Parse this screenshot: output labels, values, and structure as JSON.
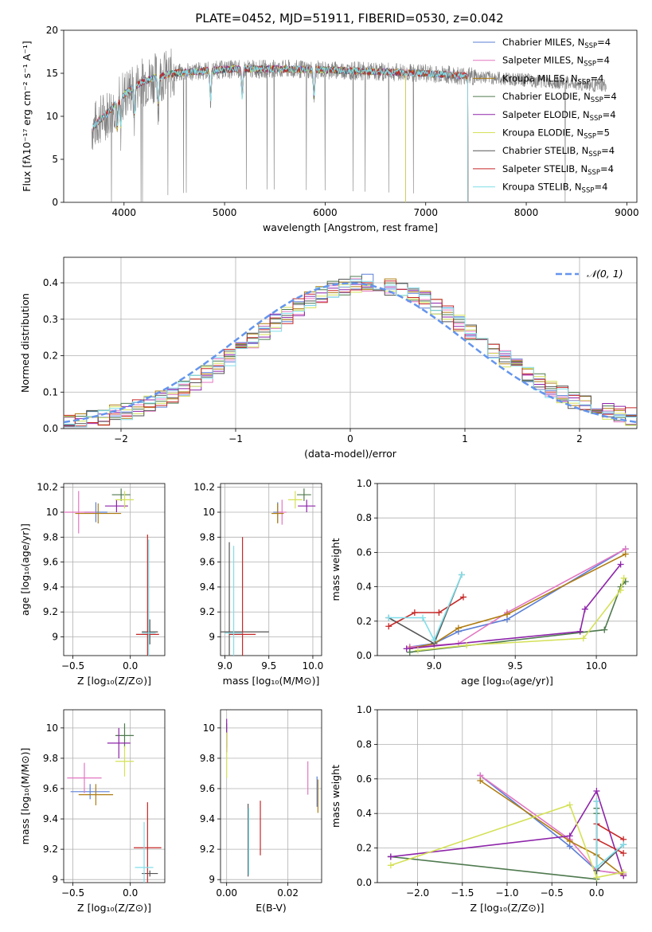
{
  "colors": {
    "Chabrier MILES": "#5b7fd6",
    "Salpeter MILES": "#e377c2",
    "Kroupa MILES": "#b07d12",
    "Chabrier ELODIE": "#4f7a4f",
    "Salpeter ELODIE": "#8e24aa",
    "Kroupa ELODIE": "#d4e157",
    "Chabrier STELIB": "#555555",
    "Salpeter STELIB": "#c62828",
    "Kroupa STELIB": "#80deea",
    "data": "#808080",
    "gaussian": "#6495ed",
    "grid": "#b0b0b0"
  },
  "chart_data": [
    {
      "type": "line",
      "title": "PLATE=0452, MJD=51911, FIBERID=0530, z=0.042",
      "xlabel": "wavelength [Angstrom, rest frame]",
      "ylabel": "Flux [fλ10⁻¹⁷ erg cm⁻² s⁻¹ A⁻¹]",
      "xlim": [
        3400,
        9100
      ],
      "ylim": [
        0,
        20
      ],
      "xticks": [
        4000,
        5000,
        6000,
        7000,
        8000,
        9000
      ],
      "yticks": [
        0,
        5,
        10,
        15,
        20
      ],
      "grid": false,
      "legend": "right",
      "legend_entries": [
        {
          "label": "Chabrier MILES, N",
          "sub": "SSP",
          "tail": "=4"
        },
        {
          "label": "Salpeter MILES, N",
          "sub": "SSP",
          "tail": "=4"
        },
        {
          "label": "Kroupa MILES, N",
          "sub": "SSP",
          "tail": "=4"
        },
        {
          "label": "Chabrier ELODIE, N",
          "sub": "SSP",
          "tail": "=4"
        },
        {
          "label": "Salpeter ELODIE, N",
          "sub": "SSP",
          "tail": "=4"
        },
        {
          "label": "Kroupa ELODIE, N",
          "sub": "SSP",
          "tail": "=5"
        },
        {
          "label": "Chabrier STELIB, N",
          "sub": "SSP",
          "tail": "=4"
        },
        {
          "label": "Salpeter STELIB, N",
          "sub": "SSP",
          "tail": "=4"
        },
        {
          "label": "Kroupa STELIB, N",
          "sub": "SSP",
          "tail": "=4"
        }
      ],
      "continuum": {
        "x": [
          3680,
          3750,
          3850,
          3950,
          4050,
          4150,
          4300,
          4500,
          4800,
          5100,
          5500,
          6000,
          6500,
          7000,
          7400,
          8000,
          8500,
          8800
        ],
        "y": [
          8.5,
          9.5,
          10.5,
          12.0,
          13.0,
          13.8,
          14.5,
          15.0,
          15.3,
          15.5,
          15.5,
          15.4,
          15.2,
          15.0,
          14.7,
          14.2,
          13.8,
          13.5
        ]
      },
      "data_x_range": [
        3680,
        8800
      ],
      "model_x_ranges": {
        "MILES": [
          3680,
          7420
        ],
        "ELODIE": [
          3890,
          6800
        ],
        "STELIB": [
          3680,
          7420
        ]
      }
    },
    {
      "type": "bar",
      "xlabel": "(data-model)/error",
      "ylabel": "Normed distribution",
      "xlim": [
        -2.5,
        2.5
      ],
      "ylim": [
        0,
        0.47
      ],
      "xticks": [
        -2,
        -1,
        0,
        1,
        2
      ],
      "xtick_labels": [
        "−2",
        "−1",
        "0",
        "1",
        "2"
      ],
      "yticks": [
        0.0,
        0.1,
        0.2,
        0.3,
        0.4
      ],
      "grid": true,
      "legend": "top-right",
      "gaussian_label": "𝒩(0, 1)",
      "bin_width": 0.1,
      "bin_start": -2.5,
      "base_values": [
        0.018,
        0.022,
        0.027,
        0.033,
        0.04,
        0.048,
        0.056,
        0.066,
        0.079,
        0.094,
        0.11,
        0.129,
        0.149,
        0.171,
        0.194,
        0.218,
        0.242,
        0.266,
        0.29,
        0.312,
        0.333,
        0.352,
        0.368,
        0.381,
        0.391,
        0.397,
        0.4,
        0.397,
        0.391,
        0.381,
        0.368,
        0.352,
        0.333,
        0.312,
        0.29,
        0.266,
        0.242,
        0.218,
        0.194,
        0.171,
        0.149,
        0.129,
        0.11,
        0.094,
        0.079,
        0.066,
        0.056,
        0.048,
        0.04,
        0.033
      ]
    },
    {
      "type": "scatter",
      "xlabel": "Z [log₁₀(Z/Z⊙)]",
      "ylabel": "age  [log₁₀(age/yr)]",
      "xlim": [
        -0.58,
        0.3
      ],
      "ylim": [
        8.85,
        10.23
      ],
      "xticks": [
        -0.5,
        0.0
      ],
      "xtick_labels": [
        "−0.5",
        "0.0"
      ],
      "yticks": [
        9.0,
        9.2,
        9.4,
        9.6,
        9.8,
        10.0,
        10.2
      ],
      "grid": true,
      "points": [
        {
          "s": "Chabrier MILES",
          "x": -0.3,
          "y": 10.0,
          "ex": 0.1,
          "ey": 0.08
        },
        {
          "s": "Salpeter MILES",
          "x": -0.45,
          "y": 10.0,
          "ex": 0.15,
          "ey": 0.17
        },
        {
          "s": "Kroupa MILES",
          "x": -0.28,
          "y": 9.99,
          "ex": 0.2,
          "ey": 0.08
        },
        {
          "s": "Chabrier ELODIE",
          "x": -0.08,
          "y": 10.14,
          "ex": 0.08,
          "ey": 0.05
        },
        {
          "s": "Salpeter ELODIE",
          "x": -0.12,
          "y": 10.05,
          "ex": 0.1,
          "ey": 0.05
        },
        {
          "s": "Kroupa ELODIE",
          "x": -0.05,
          "y": 10.1,
          "ex": 0.08,
          "ey": 0.07
        },
        {
          "s": "Chabrier STELIB",
          "x": 0.17,
          "y": 9.04,
          "ex": 0.07,
          "ey": 0.1
        },
        {
          "s": "Salpeter STELIB",
          "x": 0.15,
          "y": 9.02,
          "ex": 0.1,
          "ey": 0.8
        },
        {
          "s": "Kroupa STELIB",
          "x": 0.16,
          "y": 9.03,
          "ex": 0.06,
          "ey": 0.75
        }
      ]
    },
    {
      "type": "scatter",
      "xlabel": "mass [log₁₀(M/M⊙)]",
      "ylabel": "",
      "xlim": [
        8.95,
        10.1
      ],
      "ylim": [
        8.85,
        10.23
      ],
      "xticks": [
        9.0,
        9.5,
        10.0
      ],
      "xtick_labels": [
        "9.0",
        "9.5",
        "10.0"
      ],
      "yticks": [
        9.0,
        9.2,
        9.4,
        9.6,
        9.8,
        10.0,
        10.2
      ],
      "grid": true,
      "points": [
        {
          "s": "Chabrier MILES",
          "x": 9.6,
          "y": 10.0,
          "ex": 0.05,
          "ey": 0.08
        },
        {
          "s": "Salpeter MILES",
          "x": 9.65,
          "y": 10.0,
          "ex": 0.05,
          "ey": 0.1
        },
        {
          "s": "Kroupa MILES",
          "x": 9.6,
          "y": 9.99,
          "ex": 0.07,
          "ey": 0.08
        },
        {
          "s": "Chabrier ELODIE",
          "x": 9.9,
          "y": 10.14,
          "ex": 0.08,
          "ey": 0.05
        },
        {
          "s": "Salpeter ELODIE",
          "x": 9.93,
          "y": 10.05,
          "ex": 0.1,
          "ey": 0.05
        },
        {
          "s": "Kroupa ELODIE",
          "x": 9.8,
          "y": 10.1,
          "ex": 0.08,
          "ey": 0.07
        },
        {
          "s": "Chabrier STELIB",
          "x": 9.05,
          "y": 9.04,
          "ex": 0.45,
          "ey": 0.72
        },
        {
          "s": "Salpeter STELIB",
          "x": 9.2,
          "y": 9.02,
          "ex": 0.15,
          "ey": 0.78
        },
        {
          "s": "Kroupa STELIB",
          "x": 9.1,
          "y": 9.03,
          "ex": 0.1,
          "ey": 0.7
        }
      ]
    },
    {
      "type": "line",
      "xlabel": "age  [log₁₀(age/yr)]",
      "ylabel": "mass weight",
      "xlim": [
        8.65,
        10.25
      ],
      "ylim": [
        0,
        1.0
      ],
      "xticks": [
        9.0,
        9.5,
        10.0
      ],
      "xtick_labels": [
        "9.0",
        "9.5",
        "10.0"
      ],
      "yticks": [
        0.0,
        0.2,
        0.4,
        0.6,
        0.8,
        1.0
      ],
      "grid": true,
      "series": [
        {
          "s": "Chabrier MILES",
          "x": [
            8.85,
            9.0,
            9.15,
            9.45,
            10.18
          ],
          "y": [
            0.05,
            0.07,
            0.14,
            0.21,
            0.62
          ]
        },
        {
          "s": "Salpeter MILES",
          "x": [
            8.85,
            9.0,
            9.15,
            9.45,
            10.18
          ],
          "y": [
            0.05,
            0.06,
            0.07,
            0.25,
            0.62
          ]
        },
        {
          "s": "Kroupa MILES",
          "x": [
            8.85,
            9.0,
            9.15,
            9.45,
            10.18
          ],
          "y": [
            0.04,
            0.07,
            0.16,
            0.24,
            0.59
          ]
        },
        {
          "s": "Chabrier ELODIE",
          "x": [
            8.85,
            10.05,
            10.15,
            10.18
          ],
          "y": [
            0.02,
            0.15,
            0.4,
            0.43
          ]
        },
        {
          "s": "Salpeter ELODIE",
          "x": [
            8.83,
            9.9,
            9.93,
            10.15
          ],
          "y": [
            0.04,
            0.14,
            0.27,
            0.53
          ]
        },
        {
          "s": "Kroupa ELODIE",
          "x": [
            8.9,
            9.2,
            9.92,
            10.15,
            10.17
          ],
          "y": [
            0.03,
            0.06,
            0.1,
            0.38,
            0.45
          ]
        },
        {
          "s": "Chabrier STELIB",
          "x": [
            8.72,
            9.0,
            9.17
          ],
          "y": [
            0.22,
            0.07,
            0.47
          ]
        },
        {
          "s": "Salpeter STELIB",
          "x": [
            8.72,
            8.88,
            9.03,
            9.18
          ],
          "y": [
            0.17,
            0.25,
            0.25,
            0.34
          ]
        },
        {
          "s": "Kroupa STELIB",
          "x": [
            8.72,
            8.93,
            9.0,
            9.17
          ],
          "y": [
            0.22,
            0.22,
            0.09,
            0.47
          ]
        }
      ]
    },
    {
      "type": "scatter",
      "xlabel": "Z [log₁₀(Z/Z⊙)]",
      "ylabel": "mass [log₁₀(M/M⊙)]",
      "xlim": [
        -0.58,
        0.3
      ],
      "ylim": [
        8.98,
        10.12
      ],
      "xticks": [
        -0.5,
        0.0
      ],
      "xtick_labels": [
        "−0.5",
        "0.0"
      ],
      "yticks": [
        9.0,
        9.2,
        9.4,
        9.6,
        9.8,
        10.0
      ],
      "grid": true,
      "points": [
        {
          "s": "Chabrier MILES",
          "x": -0.35,
          "y": 9.58,
          "ex": 0.17,
          "ey": 0.05
        },
        {
          "s": "Salpeter MILES",
          "x": -0.4,
          "y": 9.67,
          "ex": 0.15,
          "ey": 0.1
        },
        {
          "s": "Kroupa MILES",
          "x": -0.3,
          "y": 9.56,
          "ex": 0.15,
          "ey": 0.07
        },
        {
          "s": "Chabrier ELODIE",
          "x": -0.05,
          "y": 9.95,
          "ex": 0.08,
          "ey": 0.08
        },
        {
          "s": "Salpeter ELODIE",
          "x": -0.1,
          "y": 9.9,
          "ex": 0.1,
          "ey": 0.1
        },
        {
          "s": "Kroupa ELODIE",
          "x": -0.05,
          "y": 9.78,
          "ex": 0.08,
          "ey": 0.1
        },
        {
          "s": "Chabrier STELIB",
          "x": 0.17,
          "y": 9.04,
          "ex": 0.07,
          "ey": 0.02
        },
        {
          "s": "Salpeter STELIB",
          "x": 0.15,
          "y": 9.21,
          "ex": 0.12,
          "ey": 0.3
        },
        {
          "s": "Kroupa STELIB",
          "x": 0.12,
          "y": 9.08,
          "ex": 0.08,
          "ey": 0.3
        }
      ]
    },
    {
      "type": "scatter",
      "xlabel": "E(B-V)",
      "ylabel": "",
      "xlim": [
        -0.002,
        0.031
      ],
      "ylim": [
        8.98,
        10.12
      ],
      "xticks": [
        0.0,
        0.02
      ],
      "xtick_labels": [
        "0.00",
        "0.02"
      ],
      "yticks": [
        9.0,
        9.2,
        9.4,
        9.6,
        9.8,
        10.0
      ],
      "grid": true,
      "points": [
        {
          "s": "Chabrier MILES",
          "x": 0.0295,
          "y": 9.58,
          "ex": 0,
          "ey": 0.1
        },
        {
          "s": "Salpeter MILES",
          "x": 0.0265,
          "y": 9.67,
          "ex": 0,
          "ey": 0.11
        },
        {
          "s": "Kroupa MILES",
          "x": 0.0298,
          "y": 9.55,
          "ex": 0,
          "ey": 0.11
        },
        {
          "s": "Chabrier ELODIE",
          "x": 0.0,
          "y": 9.95,
          "ex": 0,
          "ey": 0.08
        },
        {
          "s": "Salpeter ELODIE",
          "x": 0.0,
          "y": 9.95,
          "ex": 0,
          "ey": 0.11
        },
        {
          "s": "Kroupa ELODIE",
          "x": 0.0,
          "y": 9.82,
          "ex": 0,
          "ey": 0.15
        },
        {
          "s": "Chabrier STELIB",
          "x": 0.007,
          "y": 9.26,
          "ex": 0,
          "ey": 0.24
        },
        {
          "s": "Salpeter STELIB",
          "x": 0.011,
          "y": 9.34,
          "ex": 0,
          "ey": 0.18
        },
        {
          "s": "Kroupa STELIB",
          "x": 0.0072,
          "y": 9.25,
          "ex": 0,
          "ey": 0.22
        }
      ]
    },
    {
      "type": "line",
      "xlabel": "Z [log₁₀(Z/Z⊙)]",
      "ylabel": "mass weight",
      "xlim": [
        -2.45,
        0.45
      ],
      "ylim": [
        0,
        1.0
      ],
      "xticks": [
        -2.0,
        -1.5,
        -1.0,
        -0.5,
        0.0
      ],
      "xtick_labels": [
        "−2.0",
        "−1.5",
        "−1.0",
        "−0.5",
        "0.0"
      ],
      "yticks": [
        0.0,
        0.2,
        0.4,
        0.6,
        0.8,
        1.0
      ],
      "grid": true,
      "series": [
        {
          "s": "Chabrier MILES",
          "x": [
            -1.3,
            -0.3,
            0.0,
            0.3
          ],
          "y": [
            0.62,
            0.21,
            0.07,
            0.05
          ]
        },
        {
          "s": "Salpeter MILES",
          "x": [
            -1.3,
            -0.3,
            0.0,
            0.3
          ],
          "y": [
            0.62,
            0.25,
            0.07,
            0.05
          ]
        },
        {
          "s": "Kroupa MILES",
          "x": [
            -1.3,
            -0.3,
            0.0,
            0.3
          ],
          "y": [
            0.59,
            0.24,
            0.16,
            0.04
          ]
        },
        {
          "s": "Chabrier ELODIE",
          "x": [
            -2.3,
            0.0,
            0.0,
            0.0
          ],
          "y": [
            0.15,
            0.02,
            0.4,
            0.43
          ]
        },
        {
          "s": "Salpeter ELODIE",
          "x": [
            -2.3,
            -0.3,
            0.0,
            0.3
          ],
          "y": [
            0.15,
            0.27,
            0.53,
            0.04
          ]
        },
        {
          "s": "Kroupa ELODIE",
          "x": [
            -2.3,
            -0.3,
            0.0,
            0.3
          ],
          "y": [
            0.1,
            0.45,
            0.03,
            0.06
          ]
        },
        {
          "s": "Chabrier STELIB",
          "x": [
            0.3,
            0.0,
            0.0
          ],
          "y": [
            0.22,
            0.07,
            0.47
          ]
        },
        {
          "s": "Salpeter STELIB",
          "x": [
            0.3,
            0.0,
            0.0,
            0.3
          ],
          "y": [
            0.17,
            0.25,
            0.34,
            0.25
          ]
        },
        {
          "s": "Kroupa STELIB",
          "x": [
            0.3,
            0.0,
            0.0
          ],
          "y": [
            0.22,
            0.09,
            0.47
          ]
        }
      ]
    }
  ]
}
